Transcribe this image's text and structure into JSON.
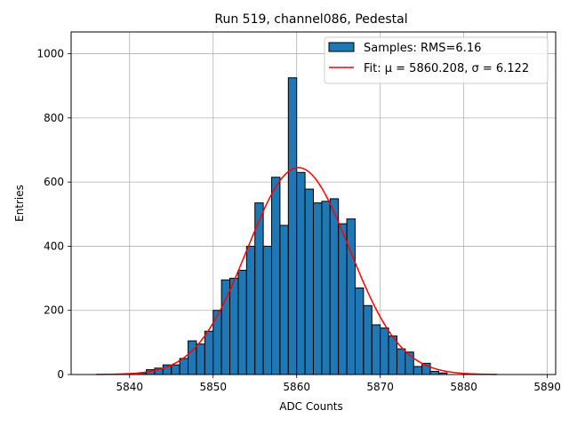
{
  "chart_data": {
    "type": "bar",
    "title": "Run 519, channel086, Pedestal",
    "xlabel": "ADC Counts",
    "ylabel": "Entries",
    "xlim": [
      5833,
      5891
    ],
    "ylim": [
      0,
      1068
    ],
    "xticks": [
      5840,
      5850,
      5860,
      5870,
      5880,
      5890
    ],
    "yticks": [
      0,
      200,
      400,
      600,
      800,
      1000
    ],
    "grid": true,
    "legend_position": "top-right",
    "histogram": {
      "name": "Samples: RMS=6.16",
      "color": "#1f77b4",
      "bin_width": 1,
      "bins": [
        {
          "x": 5841,
          "count": 5
        },
        {
          "x": 5842,
          "count": 15
        },
        {
          "x": 5843,
          "count": 20
        },
        {
          "x": 5844,
          "count": 30
        },
        {
          "x": 5845,
          "count": 30
        },
        {
          "x": 5846,
          "count": 50
        },
        {
          "x": 5847,
          "count": 105
        },
        {
          "x": 5848,
          "count": 95
        },
        {
          "x": 5849,
          "count": 135
        },
        {
          "x": 5850,
          "count": 200
        },
        {
          "x": 5851,
          "count": 295
        },
        {
          "x": 5852,
          "count": 300
        },
        {
          "x": 5853,
          "count": 325
        },
        {
          "x": 5854,
          "count": 400
        },
        {
          "x": 5855,
          "count": 535
        },
        {
          "x": 5856,
          "count": 400
        },
        {
          "x": 5857,
          "count": 615
        },
        {
          "x": 5858,
          "count": 465
        },
        {
          "x": 5859,
          "count": 925
        },
        {
          "x": 5860,
          "count": 630
        },
        {
          "x": 5861,
          "count": 578
        },
        {
          "x": 5862,
          "count": 535
        },
        {
          "x": 5863,
          "count": 540
        },
        {
          "x": 5864,
          "count": 548
        },
        {
          "x": 5865,
          "count": 470
        },
        {
          "x": 5866,
          "count": 485
        },
        {
          "x": 5867,
          "count": 270
        },
        {
          "x": 5868,
          "count": 215
        },
        {
          "x": 5869,
          "count": 155
        },
        {
          "x": 5870,
          "count": 145
        },
        {
          "x": 5871,
          "count": 120
        },
        {
          "x": 5872,
          "count": 80
        },
        {
          "x": 5873,
          "count": 70
        },
        {
          "x": 5874,
          "count": 25
        },
        {
          "x": 5875,
          "count": 35
        },
        {
          "x": 5876,
          "count": 10
        },
        {
          "x": 5877,
          "count": 5
        }
      ]
    },
    "fit": {
      "name": "Fit: μ = 5860.208, σ = 6.122",
      "color": "#ff0000",
      "mu": 5860.208,
      "sigma": 6.122,
      "amplitude": 645,
      "x_range": [
        5836,
        5884
      ]
    }
  }
}
